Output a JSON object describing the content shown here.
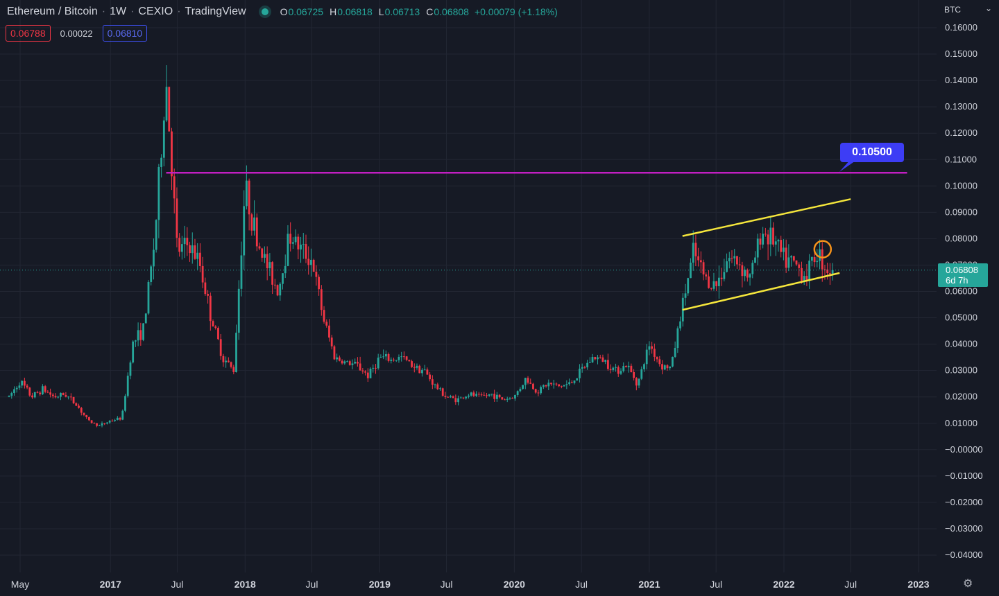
{
  "header": {
    "symbol": "Ethereum / Bitcoin",
    "interval": "1W",
    "exchange": "CEXIO",
    "source": "TradingView",
    "ohlc": {
      "o": "0.06725",
      "h": "0.06818",
      "l": "0.06713",
      "c": "0.06808",
      "change": "+0.00079 (+1.18%)"
    },
    "labels": {
      "o": "O",
      "h": "H",
      "l": "L",
      "c": "C"
    }
  },
  "quote": {
    "bid": "0.06788",
    "spread": "0.00022",
    "ask": "0.06810"
  },
  "currency": "BTC",
  "currency_chevron": "⌄",
  "last_price": {
    "value": "0.06808",
    "countdown": "6d 7h"
  },
  "level_label": "0.10500",
  "settings_icon": "⚙",
  "colors": {
    "background": "#161a25",
    "up": "#26a69a",
    "down": "#f23645",
    "level": "#c21fc2",
    "channel": "#f5e63c",
    "circle": "#f7931a",
    "tag": "#3d3df5"
  },
  "chart_data": {
    "type": "candlestick",
    "title": "Ethereum / Bitcoin",
    "ylim": [
      -0.045,
      0.162
    ],
    "y_ticks": [
      "0.16000",
      "0.15000",
      "0.14000",
      "0.13000",
      "0.12000",
      "0.11000",
      "0.10000",
      "0.09000",
      "0.08000",
      "0.07000",
      "0.06000",
      "0.05000",
      "0.04000",
      "0.03000",
      "0.02000",
      "0.01000",
      "−0.00000",
      "−0.01000",
      "−0.02000",
      "−0.03000",
      "−0.04000"
    ],
    "x_ticks": [
      {
        "label": "May",
        "bold": false,
        "date": "2016-05"
      },
      {
        "label": "2017",
        "bold": true,
        "date": "2017-01"
      },
      {
        "label": "Jul",
        "bold": false,
        "date": "2017-07"
      },
      {
        "label": "2018",
        "bold": true,
        "date": "2018-01"
      },
      {
        "label": "Jul",
        "bold": false,
        "date": "2018-07"
      },
      {
        "label": "2019",
        "bold": true,
        "date": "2019-01"
      },
      {
        "label": "Jul",
        "bold": false,
        "date": "2019-07"
      },
      {
        "label": "2020",
        "bold": true,
        "date": "2020-01"
      },
      {
        "label": "Jul",
        "bold": false,
        "date": "2020-07"
      },
      {
        "label": "2021",
        "bold": true,
        "date": "2021-01"
      },
      {
        "label": "Jul",
        "bold": false,
        "date": "2021-07"
      },
      {
        "label": "2022",
        "bold": true,
        "date": "2022-01"
      },
      {
        "label": "Jul",
        "bold": false,
        "date": "2022-07"
      },
      {
        "label": "2023",
        "bold": true,
        "date": "2023-01"
      }
    ],
    "price_path": [
      [
        "2016-04",
        0.02
      ],
      [
        "2016-05",
        0.026
      ],
      [
        "2016-06",
        0.02
      ],
      [
        "2016-07",
        0.023
      ],
      [
        "2016-08",
        0.02
      ],
      [
        "2016-09",
        0.021
      ],
      [
        "2016-10",
        0.017
      ],
      [
        "2016-11",
        0.011
      ],
      [
        "2016-12",
        0.009
      ],
      [
        "2017-01",
        0.011
      ],
      [
        "2017-02",
        0.012
      ],
      [
        "2017-03",
        0.04
      ],
      [
        "2017-04",
        0.046
      ],
      [
        "2017-05",
        0.08
      ],
      [
        "2017-06",
        0.14
      ],
      [
        "2017-07",
        0.075
      ],
      [
        "2017-08",
        0.078
      ],
      [
        "2017-09",
        0.07
      ],
      [
        "2017-10",
        0.05
      ],
      [
        "2017-11",
        0.035
      ],
      [
        "2017-12",
        0.03
      ],
      [
        "2018-01",
        0.1
      ],
      [
        "2018-02",
        0.08
      ],
      [
        "2018-03",
        0.07
      ],
      [
        "2018-04",
        0.06
      ],
      [
        "2018-05",
        0.082
      ],
      [
        "2018-06",
        0.076
      ],
      [
        "2018-07",
        0.072
      ],
      [
        "2018-08",
        0.05
      ],
      [
        "2018-09",
        0.035
      ],
      [
        "2018-10",
        0.033
      ],
      [
        "2018-11",
        0.032
      ],
      [
        "2018-12",
        0.028
      ],
      [
        "2019-01",
        0.035
      ],
      [
        "2019-02",
        0.034
      ],
      [
        "2019-03",
        0.035
      ],
      [
        "2019-04",
        0.032
      ],
      [
        "2019-05",
        0.03
      ],
      [
        "2019-06",
        0.024
      ],
      [
        "2019-07",
        0.02
      ],
      [
        "2019-08",
        0.019
      ],
      [
        "2019-09",
        0.021
      ],
      [
        "2019-10",
        0.02
      ],
      [
        "2019-11",
        0.021
      ],
      [
        "2019-12",
        0.019
      ],
      [
        "2020-01",
        0.02
      ],
      [
        "2020-02",
        0.027
      ],
      [
        "2020-03",
        0.022
      ],
      [
        "2020-04",
        0.025
      ],
      [
        "2020-05",
        0.024
      ],
      [
        "2020-06",
        0.025
      ],
      [
        "2020-07",
        0.03
      ],
      [
        "2020-08",
        0.035
      ],
      [
        "2020-09",
        0.034
      ],
      [
        "2020-10",
        0.03
      ],
      [
        "2020-11",
        0.032
      ],
      [
        "2020-12",
        0.025
      ],
      [
        "2021-01",
        0.04
      ],
      [
        "2021-02",
        0.032
      ],
      [
        "2021-03",
        0.031
      ],
      [
        "2021-04",
        0.055
      ],
      [
        "2021-05",
        0.075
      ],
      [
        "2021-06",
        0.065
      ],
      [
        "2021-07",
        0.062
      ],
      [
        "2021-08",
        0.073
      ],
      [
        "2021-09",
        0.071
      ],
      [
        "2021-10",
        0.065
      ],
      [
        "2021-11",
        0.083
      ],
      [
        "2021-12",
        0.08
      ],
      [
        "2022-01",
        0.072
      ],
      [
        "2022-02",
        0.07
      ],
      [
        "2022-03",
        0.066
      ],
      [
        "2022-04",
        0.075
      ],
      [
        "2022-05",
        0.068
      ]
    ],
    "last": 0.06808,
    "horizontal_level": {
      "value": 0.105,
      "from": "2017-06",
      "to": "2022-12"
    },
    "channel": {
      "upper": [
        [
          "2021-04",
          0.081
        ],
        [
          "2022-07",
          0.095
        ]
      ],
      "lower": [
        [
          "2021-04",
          0.053
        ],
        [
          "2022-06",
          0.067
        ]
      ]
    },
    "circle_marker": {
      "date": "2022-04",
      "value": 0.076
    }
  }
}
